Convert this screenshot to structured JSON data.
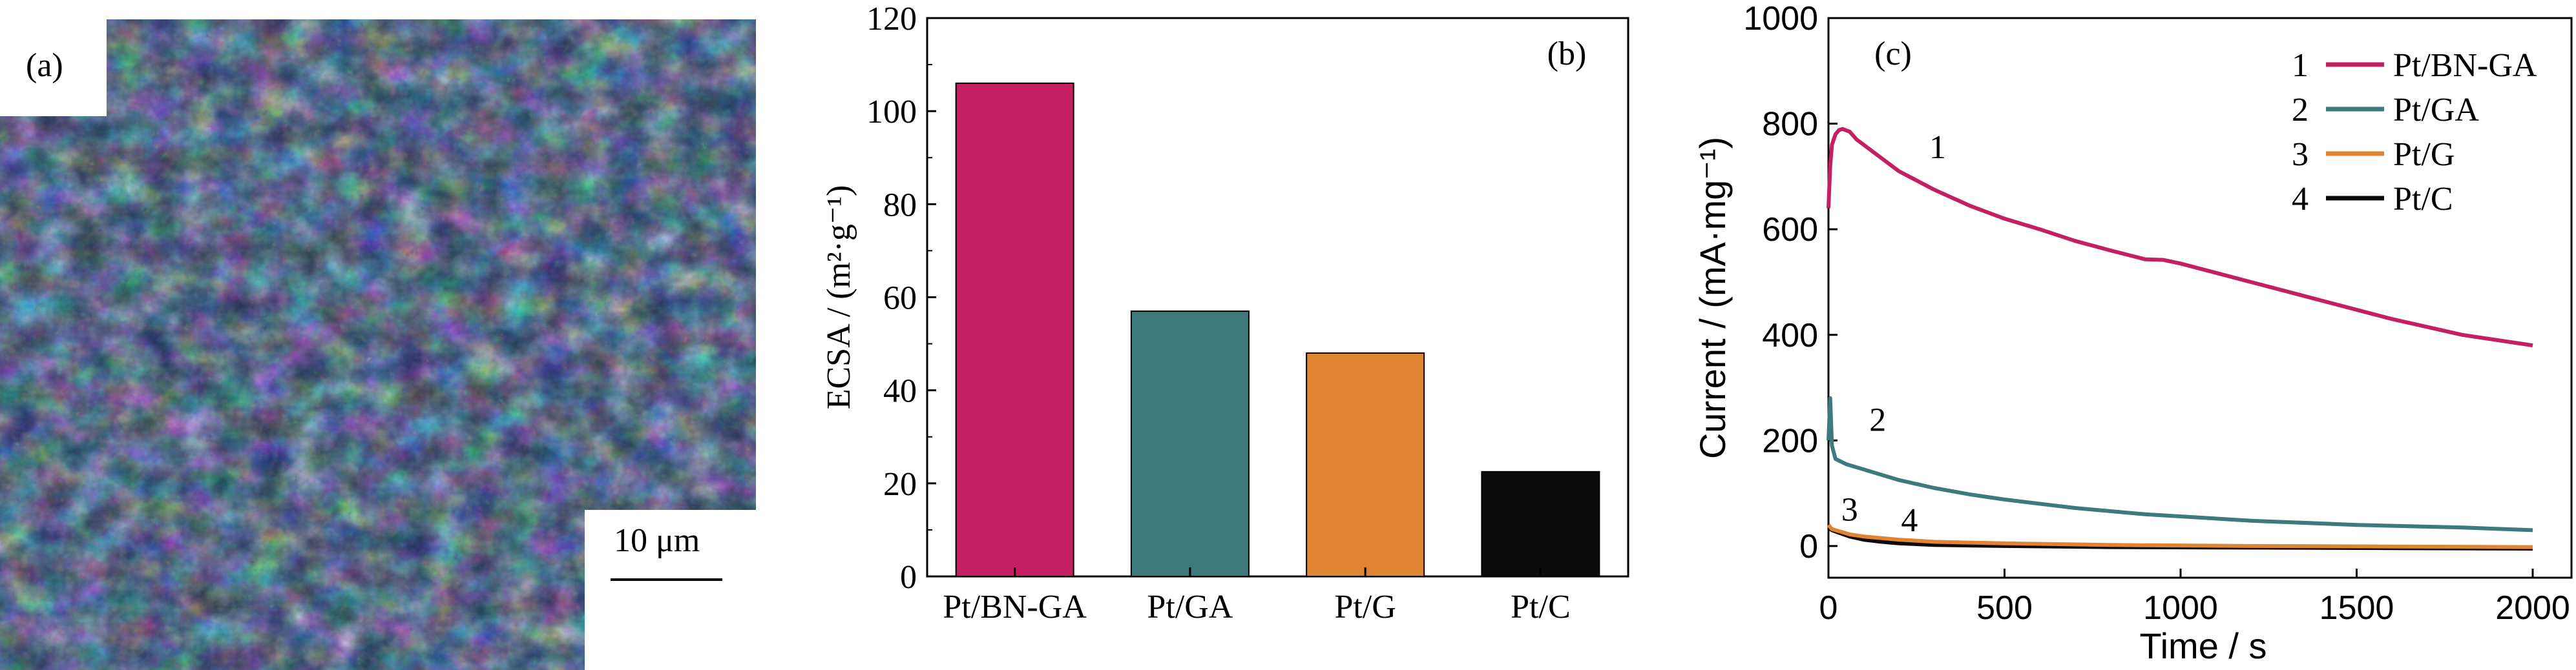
{
  "panel_a": {
    "label": "(a)",
    "scale_bar_label": "10 μm",
    "image_desc_icon": "sem-micrograph-icon"
  },
  "chart_data": [
    {
      "type": "bar",
      "panel_label": "(b)",
      "title": "",
      "xlabel": "",
      "ylabel": "ECSA / (m²·g⁻¹)",
      "ylim": [
        0,
        120
      ],
      "yticks": [
        "0",
        "20",
        "40",
        "60",
        "80",
        "100",
        "120"
      ],
      "categories": [
        "Pt/BN-GA",
        "Pt/GA",
        "Pt/G",
        "Pt/C"
      ],
      "values": [
        106,
        57,
        48,
        22.5
      ],
      "colors": [
        "#c51f64",
        "#3d7a7c",
        "#e08431",
        "#0b0b0b"
      ],
      "grid": false
    },
    {
      "type": "line",
      "panel_label": "(c)",
      "title": "",
      "xlabel": "Time / s",
      "ylabel": "Current / (mA·mg⁻¹)",
      "xlim": [
        0,
        2000
      ],
      "ylim": [
        -60,
        1000
      ],
      "xticks": [
        "0",
        "500",
        "1000",
        "1500",
        "2000"
      ],
      "yticks": [
        "0",
        "200",
        "400",
        "600",
        "800",
        "1000"
      ],
      "legend_position": "top-right",
      "legend_numbers": [
        "1",
        "2",
        "3",
        "4"
      ],
      "series": [
        {
          "name": "Pt/BN-GA",
          "number": "1",
          "color": "#c51f64",
          "x": [
            0,
            5,
            10,
            20,
            30,
            40,
            60,
            80,
            120,
            200,
            300,
            400,
            500,
            600,
            700,
            800,
            900,
            950,
            1000,
            1200,
            1400,
            1600,
            1800,
            2000
          ],
          "y": [
            640,
            720,
            760,
            780,
            788,
            790,
            785,
            770,
            750,
            710,
            675,
            645,
            620,
            600,
            578,
            560,
            543,
            542,
            535,
            500,
            465,
            430,
            400,
            380
          ]
        },
        {
          "name": "Pt/GA",
          "number": "2",
          "color": "#3d7a7c",
          "x": [
            0,
            5,
            10,
            20,
            50,
            100,
            200,
            300,
            400,
            500,
            700,
            900,
            1200,
            1500,
            1800,
            2000
          ],
          "y": [
            200,
            280,
            190,
            165,
            155,
            145,
            125,
            110,
            98,
            88,
            72,
            60,
            48,
            40,
            35,
            30
          ]
        },
        {
          "name": "Pt/G",
          "number": "3",
          "color": "#e08431",
          "x": [
            0,
            10,
            30,
            60,
            100,
            200,
            300,
            500,
            800,
            1200,
            1600,
            2000
          ],
          "y": [
            40,
            32,
            28,
            22,
            18,
            12,
            8,
            5,
            2,
            0,
            -1,
            -2
          ]
        },
        {
          "name": "Pt/C",
          "number": "4",
          "color": "#0b0b0b",
          "x": [
            0,
            10,
            30,
            60,
            100,
            150,
            200,
            300,
            500,
            800,
            1200,
            1600,
            2000
          ],
          "y": [
            35,
            30,
            25,
            18,
            12,
            8,
            5,
            2,
            0,
            -2,
            -3,
            -4,
            -5
          ]
        }
      ],
      "annotations": [
        {
          "text": "1",
          "x": 310,
          "y": 735
        },
        {
          "text": "2",
          "x": 140,
          "y": 218
        },
        {
          "text": "3",
          "x": 60,
          "y": 48
        },
        {
          "text": "4",
          "x": 230,
          "y": 28
        }
      ]
    }
  ]
}
